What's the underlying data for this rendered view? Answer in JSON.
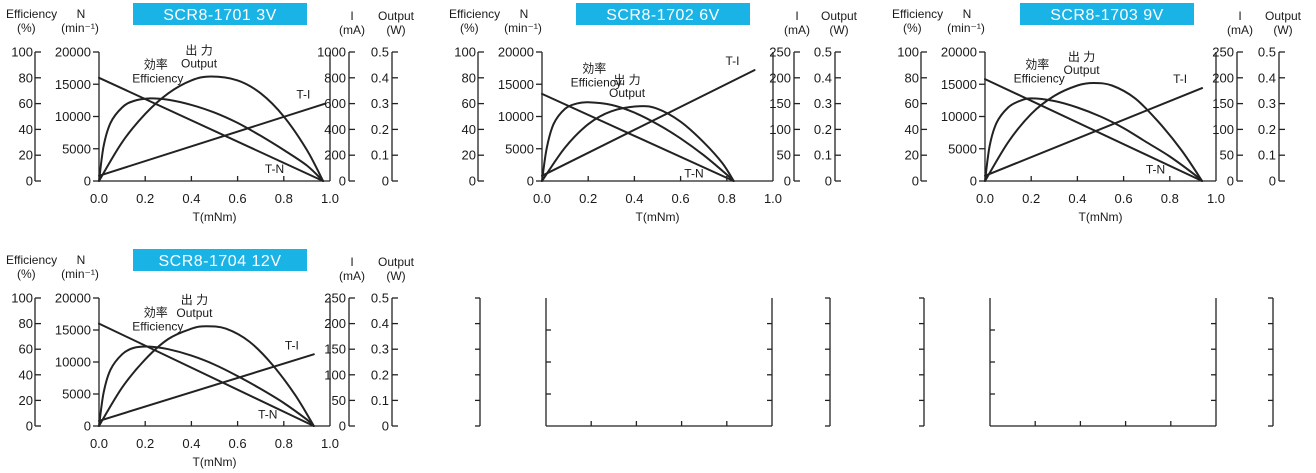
{
  "colors": {
    "title_bg": "#19b3e6",
    "title_text": "#ffffff",
    "line": "#222222"
  },
  "chart_data": [
    {
      "type": "line",
      "title": "SCR8-1701  3V",
      "xlabel": "T(mNm)",
      "x_ticks": [
        "0.0",
        "0.2",
        "0.4",
        "0.6",
        "0.8",
        "1.0"
      ],
      "xlim": [
        0,
        1.0
      ],
      "axes": {
        "efficiency": {
          "label_top": "Efficiency",
          "label_unit": "(%)",
          "ticks": [
            "0",
            "20",
            "40",
            "60",
            "80",
            "100"
          ],
          "lim": [
            0,
            100
          ]
        },
        "speed": {
          "label_top": "N",
          "label_unit": "(min⁻¹)",
          "ticks": [
            "0",
            "5000",
            "10000",
            "15000",
            "20000"
          ],
          "lim": [
            0,
            20000
          ]
        },
        "current": {
          "label_top": "I",
          "label_unit": "(mA)",
          "ticks": [
            "0",
            "200",
            "400",
            "600",
            "800",
            "1000"
          ],
          "lim": [
            0,
            1000
          ]
        },
        "output": {
          "label_top": "Output",
          "label_unit": "(W)",
          "ticks": [
            "0",
            "0.1",
            "0.2",
            "0.3",
            "0.4",
            "0.5"
          ],
          "lim": [
            0,
            0.5
          ]
        }
      },
      "annotations": {
        "efficiency_jp": "効率",
        "efficiency_en": "Efficiency",
        "output_jp": "出 力",
        "output_en": "Output",
        "current_curve": "T-I",
        "speed_curve": "T-N"
      },
      "series": [
        {
          "name": "T-N",
          "axis": "speed",
          "x": [
            0.0,
            0.97
          ],
          "y": [
            16000,
            0
          ]
        },
        {
          "name": "T-I",
          "axis": "current",
          "x": [
            0.0,
            0.98
          ],
          "y": [
            40,
            600
          ]
        },
        {
          "name": "Output",
          "axis": "output",
          "x": [
            0.0,
            0.1,
            0.2,
            0.3,
            0.4,
            0.485,
            0.6,
            0.7,
            0.8,
            0.9,
            0.97
          ],
          "y": [
            0.0,
            0.15,
            0.26,
            0.34,
            0.39,
            0.405,
            0.39,
            0.34,
            0.25,
            0.12,
            0.0
          ]
        },
        {
          "name": "Efficiency",
          "axis": "efficiency",
          "x": [
            0.0,
            0.02,
            0.05,
            0.1,
            0.15,
            0.22,
            0.3,
            0.4,
            0.5,
            0.6,
            0.7,
            0.8,
            0.9,
            0.97
          ],
          "y": [
            0,
            27,
            45,
            57,
            62,
            64,
            63,
            59,
            53,
            45,
            35,
            24,
            12,
            0
          ]
        }
      ]
    },
    {
      "type": "line",
      "title": "SCR8-1702  6V",
      "xlabel": "T(mNm)",
      "x_ticks": [
        "0.0",
        "0.2",
        "0.4",
        "0.6",
        "0.8",
        "1.0"
      ],
      "xlim": [
        0,
        1.0
      ],
      "axes": {
        "efficiency": {
          "label_top": "Efficiency",
          "label_unit": "(%)",
          "ticks": [
            "0",
            "20",
            "40",
            "60",
            "80",
            "100"
          ],
          "lim": [
            0,
            100
          ]
        },
        "speed": {
          "label_top": "N",
          "label_unit": "(min⁻¹)",
          "ticks": [
            "0",
            "5000",
            "10000",
            "15000",
            "20000"
          ],
          "lim": [
            0,
            20000
          ]
        },
        "current": {
          "label_top": "I",
          "label_unit": "(mA)",
          "ticks": [
            "0",
            "50",
            "100",
            "150",
            "200",
            "250"
          ],
          "lim": [
            0,
            250
          ]
        },
        "output": {
          "label_top": "Output",
          "label_unit": "(W)",
          "ticks": [
            "0",
            "0.1",
            "0.2",
            "0.3",
            "0.4",
            "0.5"
          ],
          "lim": [
            0,
            0.5
          ]
        }
      },
      "annotations": {
        "efficiency_jp": "効率",
        "efficiency_en": "Efficiency",
        "output_jp": "出 力",
        "output_en": "Output",
        "current_curve": "T-I",
        "speed_curve": "T-N"
      },
      "series": [
        {
          "name": "T-N",
          "axis": "speed",
          "x": [
            0.0,
            0.83
          ],
          "y": [
            13500,
            0
          ]
        },
        {
          "name": "T-I",
          "axis": "current",
          "x": [
            0.0,
            0.92
          ],
          "y": [
            10,
            215
          ]
        },
        {
          "name": "Output",
          "axis": "output",
          "x": [
            0.0,
            0.1,
            0.2,
            0.3,
            0.42,
            0.5,
            0.6,
            0.7,
            0.78,
            0.83
          ],
          "y": [
            0.0,
            0.13,
            0.22,
            0.27,
            0.29,
            0.28,
            0.23,
            0.15,
            0.07,
            0.0
          ]
        },
        {
          "name": "Efficiency",
          "axis": "efficiency",
          "x": [
            0.0,
            0.02,
            0.05,
            0.1,
            0.15,
            0.2,
            0.3,
            0.4,
            0.5,
            0.6,
            0.7,
            0.8,
            0.83
          ],
          "y": [
            0,
            25,
            44,
            56,
            60,
            61,
            59,
            53,
            44,
            33,
            20,
            5,
            0
          ]
        }
      ]
    },
    {
      "type": "line",
      "title": "SCR8-1703  9V",
      "xlabel": "T(mNm)",
      "x_ticks": [
        "0.0",
        "0.2",
        "0.4",
        "0.6",
        "0.8",
        "1.0"
      ],
      "xlim": [
        0,
        1.0
      ],
      "axes": {
        "efficiency": {
          "label_top": "Efficiency",
          "label_unit": "(%)",
          "ticks": [
            "0",
            "20",
            "40",
            "60",
            "80",
            "100"
          ],
          "lim": [
            0,
            100
          ]
        },
        "speed": {
          "label_top": "N",
          "label_unit": "(min⁻¹)",
          "ticks": [
            "0",
            "5000",
            "10000",
            "15000",
            "20000"
          ],
          "lim": [
            0,
            20000
          ]
        },
        "current": {
          "label_top": "I",
          "label_unit": "(mA)",
          "ticks": [
            "0",
            "50",
            "100",
            "150",
            "200",
            "250"
          ],
          "lim": [
            0,
            250
          ]
        },
        "output": {
          "label_top": "Output",
          "label_unit": "(W)",
          "ticks": [
            "0",
            "0.1",
            "0.2",
            "0.3",
            "0.4",
            "0.5"
          ],
          "lim": [
            0,
            0.5
          ]
        }
      },
      "annotations": {
        "efficiency_jp": "効率",
        "efficiency_en": "Efficiency",
        "output_jp": "出 力",
        "output_en": "Output",
        "current_curve": "T-I",
        "speed_curve": "T-N"
      },
      "series": [
        {
          "name": "T-N",
          "axis": "speed",
          "x": [
            0.0,
            0.94
          ],
          "y": [
            15800,
            0
          ]
        },
        {
          "name": "T-I",
          "axis": "current",
          "x": [
            0.0,
            0.94
          ],
          "y": [
            10,
            180
          ]
        },
        {
          "name": "Output",
          "axis": "output",
          "x": [
            0.0,
            0.1,
            0.2,
            0.3,
            0.4,
            0.47,
            0.55,
            0.65,
            0.75,
            0.85,
            0.94
          ],
          "y": [
            0.0,
            0.15,
            0.26,
            0.33,
            0.37,
            0.38,
            0.37,
            0.32,
            0.23,
            0.12,
            0.0
          ]
        },
        {
          "name": "Efficiency",
          "axis": "efficiency",
          "x": [
            0.0,
            0.02,
            0.05,
            0.1,
            0.15,
            0.2,
            0.3,
            0.4,
            0.5,
            0.6,
            0.7,
            0.8,
            0.9,
            0.94
          ],
          "y": [
            0,
            27,
            45,
            57,
            62,
            64,
            62,
            57,
            50,
            41,
            30,
            19,
            6,
            0
          ]
        }
      ]
    },
    {
      "type": "line",
      "title": "SCR8-1704  12V",
      "xlabel": "T(mNm)",
      "x_ticks": [
        "0.0",
        "0.2",
        "0.4",
        "0.6",
        "0.8",
        "1.0"
      ],
      "xlim": [
        0,
        1.0
      ],
      "axes": {
        "efficiency": {
          "label_top": "Efficiency",
          "label_unit": "(%)",
          "ticks": [
            "0",
            "20",
            "40",
            "60",
            "80",
            "100"
          ],
          "lim": [
            0,
            100
          ]
        },
        "speed": {
          "label_top": "N",
          "label_unit": "(min⁻¹)",
          "ticks": [
            "0",
            "5000",
            "10000",
            "15000",
            "20000"
          ],
          "lim": [
            0,
            20000
          ]
        },
        "current": {
          "label_top": "I",
          "label_unit": "(mA)",
          "ticks": [
            "0",
            "50",
            "100",
            "150",
            "200",
            "250"
          ],
          "lim": [
            0,
            250
          ]
        },
        "output": {
          "label_top": "Output",
          "label_unit": "(W)",
          "ticks": [
            "0",
            "0.1",
            "0.2",
            "0.3",
            "0.4",
            "0.5"
          ],
          "lim": [
            0,
            0.5
          ]
        }
      },
      "annotations": {
        "efficiency_jp": "効率",
        "efficiency_en": "Efficiency",
        "output_jp": "出 力",
        "output_en": "Output",
        "current_curve": "T-I",
        "speed_curve": "T-N"
      },
      "series": [
        {
          "name": "T-N",
          "axis": "speed",
          "x": [
            0.0,
            0.93
          ],
          "y": [
            16000,
            0
          ]
        },
        {
          "name": "T-I",
          "axis": "current",
          "x": [
            0.0,
            0.93
          ],
          "y": [
            10,
            140
          ]
        },
        {
          "name": "Output",
          "axis": "output",
          "x": [
            0.0,
            0.1,
            0.2,
            0.3,
            0.4,
            0.465,
            0.55,
            0.65,
            0.75,
            0.85,
            0.93
          ],
          "y": [
            0.0,
            0.15,
            0.26,
            0.34,
            0.38,
            0.39,
            0.38,
            0.33,
            0.24,
            0.12,
            0.0
          ]
        },
        {
          "name": "Efficiency",
          "axis": "efficiency",
          "x": [
            0.0,
            0.02,
            0.05,
            0.1,
            0.15,
            0.22,
            0.3,
            0.4,
            0.5,
            0.6,
            0.7,
            0.8,
            0.9,
            0.93
          ],
          "y": [
            0,
            26,
            44,
            56,
            61,
            62,
            60,
            55,
            48,
            39,
            29,
            18,
            5,
            0
          ]
        }
      ]
    }
  ],
  "empty_frames": [
    {
      "label": "blank-chart-frame-1"
    },
    {
      "label": "blank-chart-frame-2"
    }
  ]
}
